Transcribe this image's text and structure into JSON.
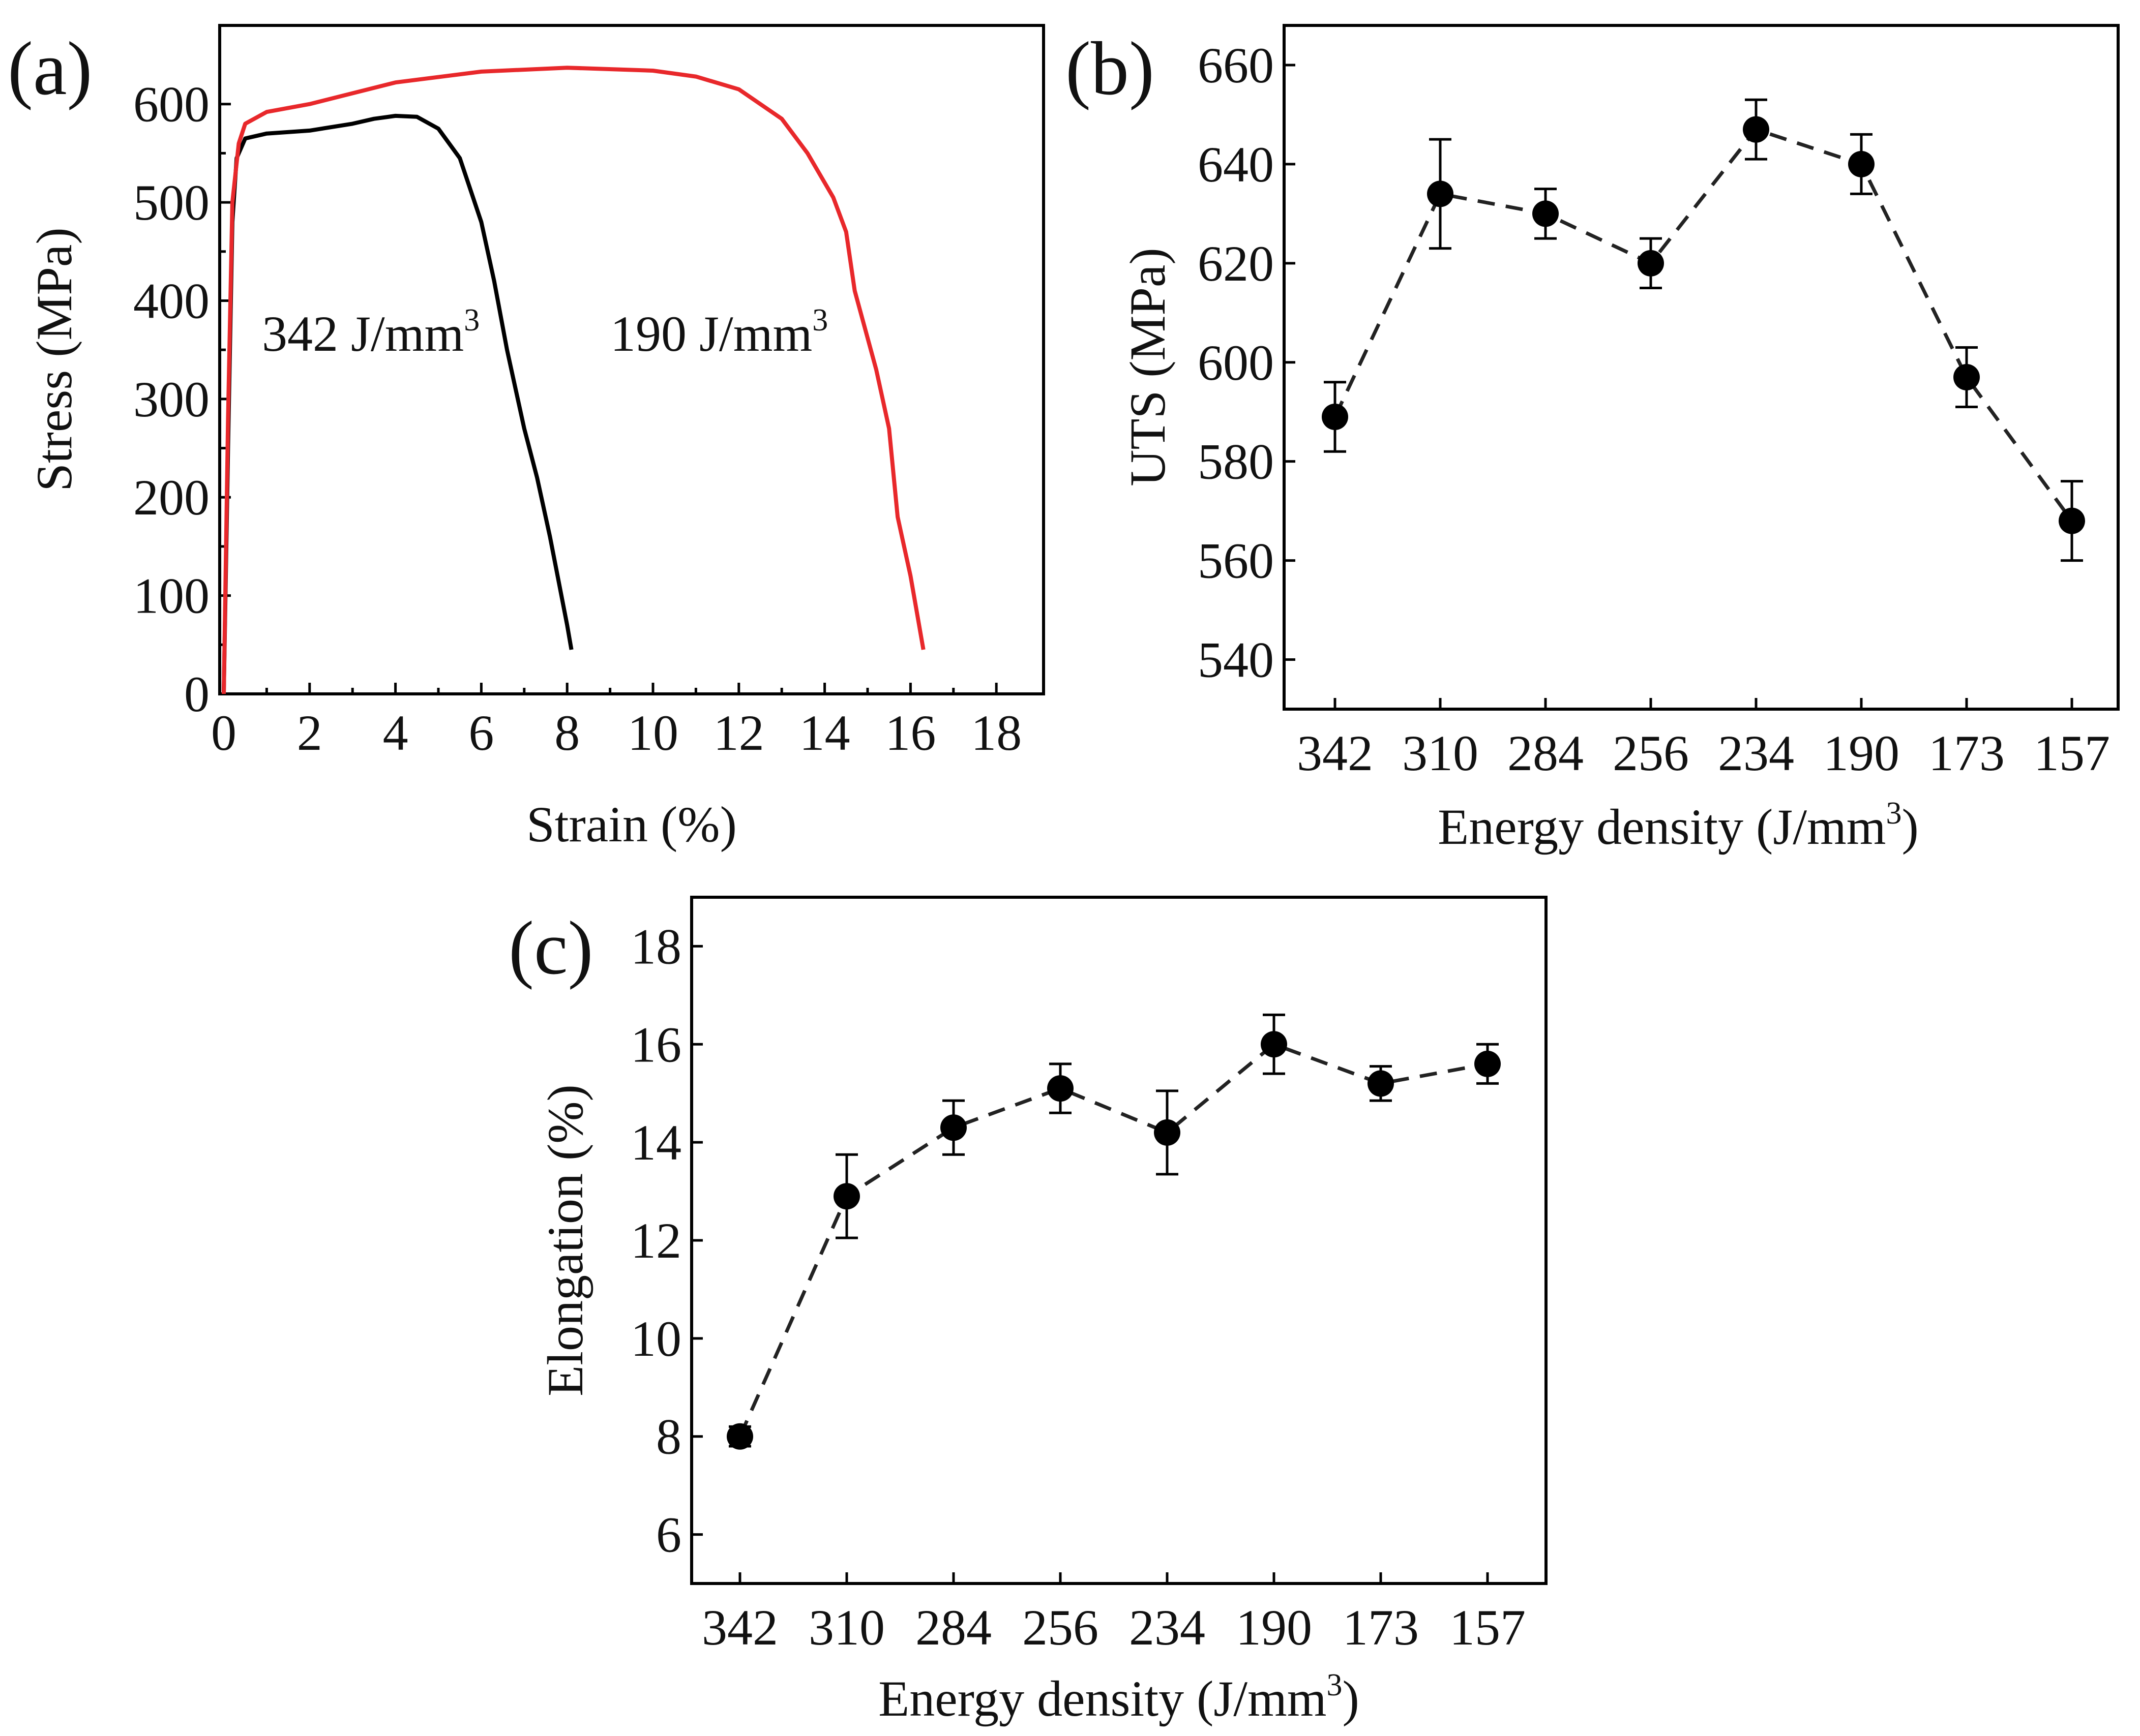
{
  "figure": {
    "chart_data": [
      {
        "id": "a",
        "type": "line",
        "panel_label": "(a)",
        "xlabel": "Strain (%)",
        "ylabel": "Stress (MPa)",
        "xlim": [
          0,
          19
        ],
        "ylim": [
          0,
          680
        ],
        "xticks": [
          0,
          2,
          4,
          6,
          8,
          10,
          12,
          14,
          16,
          18
        ],
        "yticks": [
          0,
          100,
          200,
          300,
          400,
          500,
          600
        ],
        "series": [
          {
            "name": "342 J/mm3",
            "label_main": "342 J/mm",
            "label_sup": "3",
            "color": "#000000",
            "points": [
              [
                0,
                0
              ],
              [
                0.1,
                250
              ],
              [
                0.2,
                480
              ],
              [
                0.3,
                545
              ],
              [
                0.5,
                565
              ],
              [
                1,
                570
              ],
              [
                2,
                573
              ],
              [
                3,
                580
              ],
              [
                3.5,
                585
              ],
              [
                4,
                588
              ],
              [
                4.5,
                587
              ],
              [
                5,
                575
              ],
              [
                5.5,
                545
              ],
              [
                6,
                480
              ],
              [
                6.3,
                420
              ],
              [
                6.6,
                350
              ],
              [
                7,
                270
              ],
              [
                7.3,
                220
              ],
              [
                7.6,
                160
              ],
              [
                8.0,
                70
              ],
              [
                8.1,
                45
              ]
            ]
          },
          {
            "name": "190 J/mm3",
            "label_main": "190 J/mm",
            "label_sup": "3",
            "color": "#e8282b",
            "points": [
              [
                0,
                0
              ],
              [
                0.1,
                280
              ],
              [
                0.2,
                500
              ],
              [
                0.35,
                560
              ],
              [
                0.5,
                580
              ],
              [
                1,
                592
              ],
              [
                2,
                600
              ],
              [
                4,
                622
              ],
              [
                6,
                633
              ],
              [
                8,
                637
              ],
              [
                10,
                634
              ],
              [
                11,
                628
              ],
              [
                12,
                615
              ],
              [
                13,
                585
              ],
              [
                13.6,
                550
              ],
              [
                14.2,
                505
              ],
              [
                14.5,
                470
              ],
              [
                14.7,
                410
              ],
              [
                15.2,
                330
              ],
              [
                15.5,
                270
              ],
              [
                15.7,
                180
              ],
              [
                16,
                120
              ],
              [
                16.3,
                45
              ]
            ]
          }
        ]
      },
      {
        "id": "b",
        "type": "scatter",
        "panel_label": "(b)",
        "xlabel_main": "Energy density (J/mm",
        "xlabel_sup": "3",
        "xlabel_close": ")",
        "ylabel": "UTS (MPa)",
        "categories": [
          "342",
          "310",
          "284",
          "256",
          "234",
          "190",
          "173",
          "157"
        ],
        "values": [
          589,
          634,
          630,
          620,
          647,
          640,
          597,
          568
        ],
        "errors": [
          7,
          11,
          5,
          5,
          6,
          6,
          6,
          8
        ],
        "ylim": [
          530,
          668
        ],
        "yticks": [
          540,
          560,
          580,
          600,
          620,
          640,
          660
        ]
      },
      {
        "id": "c",
        "type": "scatter",
        "panel_label": "(c)",
        "xlabel_main": "Energy density (J/mm",
        "xlabel_sup": "3",
        "xlabel_close": ")",
        "ylabel": "Elongation (%)",
        "categories": [
          "342",
          "310",
          "284",
          "256",
          "234",
          "190",
          "173",
          "157"
        ],
        "values": [
          8.0,
          12.9,
          14.3,
          15.1,
          14.2,
          16.0,
          15.2,
          15.6
        ],
        "errors": [
          0.2,
          0.85,
          0.55,
          0.5,
          0.85,
          0.6,
          0.35,
          0.4
        ],
        "ylim": [
          5,
          19
        ],
        "yticks": [
          6,
          8,
          10,
          12,
          14,
          16,
          18
        ]
      }
    ]
  }
}
